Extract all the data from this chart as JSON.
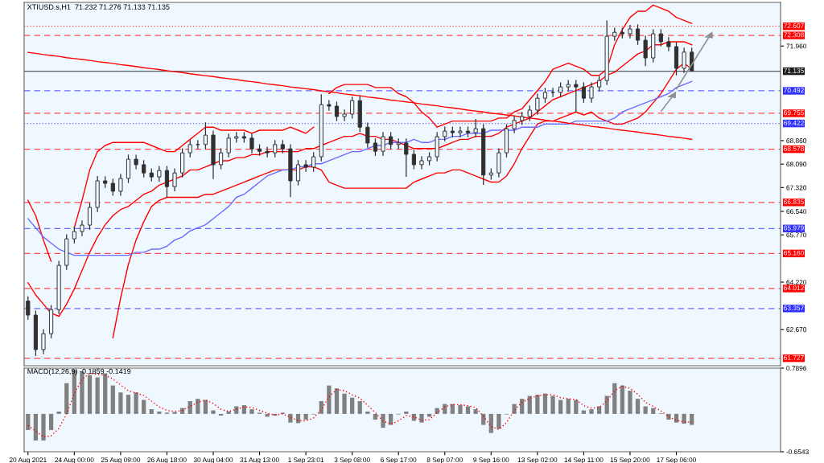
{
  "chart_data": [
    {
      "type": "candlestick",
      "title": "XTIUSD.s,H1  71.232 71.276 71.133 71.135",
      "tick_labels": "y",
      "grid": false,
      "legend": false,
      "categories": [
        null,
        null,
        null,
        null,
        null,
        null,
        null,
        null,
        null,
        null,
        null,
        null,
        null,
        null,
        null,
        null,
        null,
        null,
        null,
        null,
        null,
        null,
        null,
        null,
        null,
        null,
        null,
        null,
        null,
        null,
        null,
        null,
        null,
        null,
        null,
        null,
        null,
        null,
        null,
        null,
        null,
        null,
        null,
        null,
        null,
        null,
        null,
        null,
        null,
        null,
        null,
        null,
        null,
        null,
        null,
        null,
        null,
        null,
        null,
        null,
        null,
        null,
        null,
        null,
        null,
        null,
        null,
        null,
        null,
        null,
        null,
        null,
        null,
        null,
        null,
        null,
        null,
        null,
        null,
        null,
        null,
        null,
        null,
        null,
        null,
        null,
        null
      ],
      "ohlc": [
        [
          63.6,
          63.75,
          62.99,
          63.14
        ],
        [
          63.14,
          63.29,
          61.8,
          62.01
        ],
        [
          62.01,
          62.68,
          61.86,
          62.53
        ],
        [
          62.53,
          63.47,
          62.38,
          63.32
        ],
        [
          63.32,
          64.92,
          63.17,
          64.77
        ],
        [
          64.77,
          65.79,
          64.62,
          65.64
        ],
        [
          65.64,
          66.03,
          65.49,
          65.88
        ],
        [
          65.88,
          66.24,
          65.73,
          66.09
        ],
        [
          66.09,
          66.82,
          65.94,
          66.67
        ],
        [
          66.67,
          67.7,
          66.52,
          67.54
        ],
        [
          67.54,
          67.69,
          67.31,
          67.46
        ],
        [
          67.46,
          67.61,
          67.05,
          67.2
        ],
        [
          67.2,
          67.77,
          67.05,
          67.62
        ],
        [
          67.62,
          68.4,
          67.47,
          68.25
        ],
        [
          68.25,
          68.4,
          67.92,
          68.07
        ],
        [
          68.07,
          68.22,
          67.65,
          67.8
        ],
        [
          67.8,
          67.95,
          67.52,
          67.67
        ],
        [
          67.67,
          68.03,
          67.52,
          67.88
        ],
        [
          67.88,
          68.03,
          67.0,
          67.35
        ],
        [
          67.35,
          67.95,
          67.2,
          67.8
        ],
        [
          67.8,
          68.61,
          67.65,
          68.46
        ],
        [
          68.46,
          68.88,
          68.31,
          68.73
        ],
        [
          68.73,
          68.88,
          68.58,
          68.73
        ],
        [
          68.73,
          69.46,
          68.58,
          69.04
        ],
        [
          69.04,
          69.19,
          67.6,
          68.07
        ],
        [
          68.07,
          68.61,
          67.92,
          68.46
        ],
        [
          68.46,
          69.09,
          68.31,
          68.94
        ],
        [
          68.94,
          69.14,
          68.79,
          68.99
        ],
        [
          68.99,
          69.14,
          68.79,
          68.94
        ],
        [
          68.94,
          69.09,
          68.44,
          68.59
        ],
        [
          68.59,
          68.74,
          68.36,
          68.51
        ],
        [
          68.51,
          68.66,
          68.31,
          68.46
        ],
        [
          68.46,
          68.88,
          68.31,
          68.73
        ],
        [
          68.73,
          68.88,
          68.44,
          68.59
        ],
        [
          68.59,
          68.74,
          67.01,
          67.54
        ],
        [
          67.54,
          68.22,
          67.39,
          68.07
        ],
        [
          68.07,
          68.22,
          67.84,
          67.99
        ],
        [
          67.99,
          68.48,
          67.84,
          68.33
        ],
        [
          68.33,
          70.38,
          68.18,
          70.04
        ],
        [
          70.04,
          70.19,
          69.84,
          69.99
        ],
        [
          69.99,
          70.14,
          69.5,
          69.65
        ],
        [
          69.65,
          69.88,
          69.5,
          69.73
        ],
        [
          69.73,
          70.3,
          69.58,
          70.17
        ],
        [
          70.17,
          70.32,
          69.15,
          69.3
        ],
        [
          69.3,
          69.45,
          68.63,
          68.78
        ],
        [
          68.78,
          68.93,
          68.36,
          68.51
        ],
        [
          68.51,
          69.14,
          68.36,
          68.99
        ],
        [
          68.99,
          69.14,
          68.58,
          68.73
        ],
        [
          68.73,
          68.93,
          68.58,
          68.78
        ],
        [
          68.78,
          68.93,
          67.67,
          68.41
        ],
        [
          68.41,
          68.56,
          67.92,
          68.07
        ],
        [
          68.07,
          68.35,
          67.92,
          68.2
        ],
        [
          68.2,
          68.48,
          68.05,
          68.33
        ],
        [
          68.33,
          69.14,
          68.18,
          68.99
        ],
        [
          68.99,
          69.32,
          68.84,
          69.17
        ],
        [
          69.17,
          69.32,
          68.97,
          69.12
        ],
        [
          69.12,
          69.32,
          68.97,
          69.17
        ],
        [
          69.17,
          69.32,
          68.97,
          69.12
        ],
        [
          69.12,
          69.57,
          68.97,
          69.25
        ],
        [
          69.25,
          69.4,
          67.41,
          67.73
        ],
        [
          67.73,
          67.95,
          67.58,
          67.8
        ],
        [
          67.8,
          68.61,
          67.65,
          68.46
        ],
        [
          68.46,
          69.4,
          68.31,
          69.25
        ],
        [
          69.25,
          69.67,
          69.1,
          69.52
        ],
        [
          69.52,
          69.8,
          69.37,
          69.65
        ],
        [
          69.65,
          70.01,
          69.5,
          69.86
        ],
        [
          69.86,
          70.4,
          69.71,
          70.25
        ],
        [
          70.25,
          70.59,
          70.1,
          70.44
        ],
        [
          70.44,
          70.59,
          70.29,
          70.44
        ],
        [
          70.44,
          70.77,
          70.29,
          70.62
        ],
        [
          70.62,
          70.85,
          70.47,
          70.7
        ],
        [
          70.7,
          70.85,
          69.78,
          70.62
        ],
        [
          70.62,
          70.77,
          70.1,
          70.25
        ],
        [
          70.25,
          70.77,
          70.1,
          70.62
        ],
        [
          70.62,
          70.98,
          70.47,
          70.83
        ],
        [
          70.83,
          72.8,
          70.68,
          72.28
        ],
        [
          72.28,
          72.56,
          72.13,
          72.41
        ],
        [
          72.41,
          72.56,
          72.21,
          72.36
        ],
        [
          72.36,
          72.65,
          72.21,
          72.52
        ],
        [
          72.52,
          72.67,
          72.0,
          72.15
        ],
        [
          72.15,
          72.3,
          71.3,
          71.57
        ],
        [
          71.57,
          72.51,
          71.42,
          72.36
        ],
        [
          72.36,
          72.51,
          71.95,
          72.1
        ],
        [
          72.1,
          72.25,
          71.79,
          71.94
        ],
        [
          71.94,
          72.09,
          71.0,
          71.23
        ],
        [
          71.23,
          71.91,
          71.08,
          71.76
        ],
        [
          71.76,
          71.91,
          71.133,
          71.135
        ]
      ],
      "series": [
        {
          "type": "line",
          "color": "#ff0000",
          "values": [
            66.9,
            66.4,
            65.6,
            64.9,
            null,
            null,
            66.0,
            66.9,
            67.9,
            68.5,
            68.7,
            68.8,
            68.8,
            68.8,
            68.8,
            68.8,
            68.7,
            68.6,
            68.5,
            68.5,
            68.7,
            68.9,
            69.1,
            69.3,
            69.3,
            69.2,
            69.2,
            69.2,
            69.2,
            69.1,
            69.2,
            69.2,
            69.2,
            69.2,
            69.3,
            69.2,
            69.1,
            69.3,
            null,
            70.4,
            70.6,
            70.7,
            70.7,
            70.7,
            70.7,
            70.6,
            70.6,
            70.6,
            70.4,
            70.3,
            70.1,
            69.8,
            69.6,
            69.3,
            69.4,
            69.5,
            69.5,
            69.5,
            69.5,
            69.5,
            69.5,
            69.6,
            69.6,
            69.8,
            69.9,
            70.2,
            70.5,
            70.8,
            71.2,
            71.3,
            71.4,
            71.3,
            71.2,
            71.0,
            71.0,
            71.2,
            72.0,
            72.5,
            72.9,
            73.1,
            73.1,
            73.3,
            73.2,
            73.1,
            72.9,
            72.8,
            72.7
          ]
        },
        {
          "type": "line",
          "color": "#ff0000",
          "values": [
            64.2,
            63.8,
            63.5,
            63.2,
            63.1,
            63.5,
            64.0,
            64.6,
            65.2,
            65.7,
            66.1,
            66.4,
            66.6,
            66.7,
            66.9,
            67.1,
            67.2,
            67.4,
            67.5,
            67.6,
            67.7,
            67.9,
            67.9,
            68.0,
            68.1,
            68.2,
            68.2,
            68.3,
            68.3,
            68.4,
            68.4,
            68.5,
            68.5,
            68.5,
            68.5,
            68.5,
            68.6,
            68.6,
            68.7,
            68.8,
            68.9,
            69.0,
            69.0,
            69.1,
            69.0,
            69.0,
            68.9,
            68.9,
            68.8,
            68.7,
            68.6,
            68.6,
            68.6,
            68.6,
            68.7,
            68.8,
            68.9,
            68.9,
            69.0,
            69.0,
            69.0,
            69.1,
            69.3,
            69.4,
            69.5,
            69.6,
            69.8,
            70.0,
            70.2,
            70.3,
            70.4,
            70.5,
            70.6,
            70.7,
            70.8,
            71.0,
            71.1,
            71.3,
            71.5,
            71.7,
            71.8,
            72.0,
            72.0,
            72.1,
            72.1,
            72.1,
            72.0
          ]
        },
        {
          "type": "line",
          "color": "#ff0000",
          "values": [
            null,
            null,
            null,
            null,
            null,
            null,
            null,
            null,
            null,
            null,
            null,
            62.4,
            63.7,
            64.8,
            65.6,
            66.2,
            66.7,
            66.9,
            67.0,
            67.0,
            67.0,
            67.0,
            67.0,
            67.1,
            67.1,
            67.2,
            67.3,
            67.4,
            67.5,
            67.6,
            67.7,
            67.8,
            67.9,
            67.9,
            67.9,
            67.9,
            68.0,
            68.0,
            67.9,
            67.5,
            67.4,
            67.3,
            67.3,
            67.3,
            67.3,
            67.3,
            67.3,
            67.3,
            67.3,
            67.3,
            67.5,
            67.6,
            67.7,
            67.8,
            67.8,
            67.9,
            67.9,
            67.8,
            67.7,
            67.6,
            67.5,
            67.5,
            67.7,
            68.1,
            68.6,
            69.0,
            69.4,
            69.5,
            69.5,
            69.6,
            69.7,
            69.8,
            69.7,
            69.8,
            69.6,
            69.5,
            69.4,
            69.4,
            69.5,
            69.6,
            69.8,
            70.1,
            70.4,
            70.8,
            71.2,
            71.4,
            71.2
          ]
        },
        {
          "type": "line",
          "color": "#6b6bff",
          "values": [
            66.3,
            66.0,
            65.7,
            65.5,
            65.3,
            65.2,
            65.1,
            65.1,
            65.1,
            65.1,
            65.1,
            65.1,
            65.1,
            65.1,
            65.2,
            65.2,
            65.3,
            65.3,
            65.4,
            65.6,
            65.7,
            65.9,
            66.0,
            66.1,
            66.3,
            66.5,
            66.7,
            67.0,
            67.1,
            67.3,
            67.5,
            67.7,
            67.8,
            67.9,
            67.9,
            68.0,
            68.0,
            68.1,
            68.1,
            68.2,
            68.3,
            68.4,
            68.5,
            68.5,
            68.6,
            68.7,
            68.7,
            68.8,
            68.8,
            68.8,
            68.9,
            68.8,
            68.8,
            68.9,
            68.9,
            69.0,
            69.0,
            69.1,
            69.1,
            69.1,
            69.2,
            69.2,
            69.2,
            69.2,
            69.3,
            69.3,
            69.3,
            69.4,
            69.4,
            69.4,
            69.4,
            69.5,
            69.5,
            69.5,
            69.5,
            69.5,
            69.6,
            69.8,
            69.9,
            70.0,
            70.1,
            70.2,
            70.3,
            70.4,
            70.6,
            70.7,
            70.8
          ]
        },
        {
          "type": "line",
          "color": "#ff0000",
          "values": [
            71.75,
            71.72,
            71.68,
            71.65,
            71.62,
            71.58,
            71.55,
            71.52,
            71.49,
            71.45,
            71.42,
            71.39,
            71.35,
            71.32,
            71.29,
            71.25,
            71.22,
            71.19,
            71.15,
            71.12,
            71.09,
            71.05,
            71.02,
            70.99,
            70.96,
            70.92,
            70.89,
            70.86,
            70.82,
            70.79,
            70.76,
            70.72,
            70.69,
            70.66,
            70.62,
            70.59,
            70.56,
            70.53,
            70.49,
            70.46,
            70.43,
            70.39,
            70.36,
            70.33,
            70.29,
            70.26,
            70.23,
            70.19,
            70.16,
            70.13,
            70.1,
            70.06,
            70.03,
            70.0,
            69.96,
            69.93,
            69.9,
            69.86,
            69.83,
            69.8,
            69.76,
            69.73,
            69.7,
            69.67,
            69.63,
            69.6,
            69.57,
            69.53,
            69.5,
            69.47,
            69.43,
            69.4,
            69.37,
            69.33,
            69.3,
            69.27,
            69.23,
            69.2,
            69.17,
            69.14,
            69.1,
            69.07,
            69.04,
            69.0,
            68.97,
            68.94,
            68.9
          ]
        }
      ],
      "ylim": [
        61.48,
        73.39
      ],
      "yticks": [
        {
          "value": 71.96,
          "label": "71.960"
        },
        {
          "value": 68.86,
          "label": "68.860"
        },
        {
          "value": 68.09,
          "label": "68.090"
        },
        {
          "value": 67.32,
          "label": "67.320"
        },
        {
          "value": 66.54,
          "label": "66.540"
        },
        {
          "value": 65.77,
          "label": "65.770"
        },
        {
          "value": 64.22,
          "label": "64.220"
        },
        {
          "value": 62.67,
          "label": "62.670"
        }
      ],
      "ref_lines": [
        {
          "axis": "y",
          "value": 72.607,
          "label": "72.607",
          "color": "#ff0000",
          "line_style": "dotted"
        },
        {
          "axis": "y",
          "value": 72.308,
          "label": "72.308",
          "color": "#ff0000",
          "line_style": "dashed"
        },
        {
          "axis": "y",
          "value": 71.135,
          "label": "71.135",
          "color": "#1a1a1a",
          "line_style": "solid"
        },
        {
          "axis": "y",
          "value": 70.492,
          "label": "70.492",
          "color": "#3030ff",
          "line_style": "dashed"
        },
        {
          "axis": "y",
          "value": 69.755,
          "label": "69.755",
          "color": "#ff0000",
          "line_style": "dashed"
        },
        {
          "axis": "y",
          "value": 69.422,
          "label": "69.422",
          "color": "#3030ff",
          "line_style": "dotted"
        },
        {
          "axis": "y",
          "value": 68.578,
          "label": "68.578",
          "color": "#ff0000",
          "line_style": "dashed"
        },
        {
          "axis": "y",
          "value": 66.835,
          "label": "66.835",
          "color": "#ff0000",
          "line_style": "dashed"
        },
        {
          "axis": "y",
          "value": 65.979,
          "label": "65.979",
          "color": "#3030ff",
          "line_style": "dashed"
        },
        {
          "axis": "y",
          "value": 65.16,
          "label": "65.160",
          "color": "#ff0000",
          "line_style": "dashed"
        },
        {
          "axis": "y",
          "value": 64.012,
          "label": "64.012",
          "color": "#ff0000",
          "line_style": "dashed"
        },
        {
          "axis": "y",
          "value": 63.357,
          "label": "63.357",
          "color": "#3030ff",
          "line_style": "dashed"
        },
        {
          "axis": "y",
          "value": 61.727,
          "label": "61.727",
          "color": "#ff0000",
          "line_style": "dashed"
        }
      ]
    },
    {
      "type": "bar",
      "title": "MACD(12,26,9) -0.1859 -0.1419",
      "grid": false,
      "legend": false,
      "categories": [
        "20 Aug 2021",
        null,
        null,
        null,
        null,
        null,
        "24 Aug 00:00",
        null,
        null,
        null,
        null,
        null,
        "25 Aug 09:00",
        null,
        null,
        null,
        null,
        null,
        "26 Aug 18:00",
        null,
        null,
        null,
        null,
        null,
        "30 Aug 04:00",
        null,
        null,
        null,
        null,
        null,
        "31 Aug 13:00",
        null,
        null,
        null,
        null,
        null,
        "1 Sep 23:01",
        null,
        null,
        null,
        null,
        null,
        "3 Sep 08:00",
        null,
        null,
        null,
        null,
        null,
        "6 Sep 17:00",
        null,
        null,
        null,
        null,
        null,
        "8 Sep 07:00",
        null,
        null,
        null,
        null,
        null,
        "9 Sep 16:00",
        null,
        null,
        null,
        null,
        null,
        "13 Sep 02:00",
        null,
        null,
        null,
        null,
        null,
        "14 Sep 11:00",
        null,
        null,
        null,
        null,
        null,
        "15 Sep 20:00",
        null,
        null,
        null,
        null,
        null,
        "17 Sep 06:00",
        null,
        null
      ],
      "series": [
        {
          "type": "bar",
          "color": "#808080",
          "values": [
            -0.28,
            -0.46,
            -0.46,
            -0.28,
            0.04,
            0.53,
            0.76,
            0.73,
            0.67,
            0.63,
            0.7,
            0.49,
            0.37,
            0.33,
            0.37,
            0.24,
            0.08,
            0.04,
            0.02,
            0.03,
            0.1,
            0.22,
            0.26,
            0.24,
            0.06,
            -0.03,
            0.04,
            0.13,
            0.15,
            0.08,
            0.02,
            -0.05,
            -0.03,
            0.02,
            -0.15,
            -0.16,
            -0.1,
            -0.01,
            0.22,
            0.49,
            0.44,
            0.35,
            0.28,
            0.22,
            0.04,
            -0.1,
            -0.24,
            -0.19,
            -0.01,
            0.04,
            -0.12,
            -0.15,
            -0.05,
            0.1,
            0.17,
            0.17,
            0.15,
            0.13,
            0.08,
            -0.19,
            -0.33,
            -0.26,
            -0.01,
            0.17,
            0.26,
            0.31,
            0.33,
            0.35,
            0.31,
            0.24,
            0.26,
            0.24,
            0.06,
            0.08,
            0.13,
            0.31,
            0.53,
            0.49,
            0.4,
            0.26,
            0.13,
            0.1,
            0.01,
            -0.1,
            -0.15,
            -0.17,
            -0.19
          ]
        },
        {
          "type": "line",
          "color": "#ff0000",
          "line_style": "dotted",
          "values": [
            -0.2,
            -0.3,
            -0.4,
            -0.38,
            -0.25,
            0.0,
            0.35,
            0.6,
            0.7,
            0.68,
            0.67,
            0.6,
            0.5,
            0.4,
            0.36,
            0.32,
            0.22,
            0.12,
            0.06,
            0.04,
            0.06,
            0.13,
            0.2,
            0.24,
            0.18,
            0.08,
            0.04,
            0.08,
            0.12,
            0.11,
            0.06,
            0.01,
            -0.02,
            0.0,
            -0.06,
            -0.12,
            -0.12,
            -0.07,
            0.07,
            0.3,
            0.42,
            0.4,
            0.33,
            0.27,
            0.15,
            0.02,
            -0.12,
            -0.18,
            -0.12,
            -0.03,
            -0.05,
            -0.11,
            -0.1,
            0.02,
            0.12,
            0.16,
            0.16,
            0.14,
            0.11,
            -0.04,
            -0.22,
            -0.27,
            -0.15,
            0.06,
            0.2,
            0.27,
            0.31,
            0.33,
            0.33,
            0.28,
            0.26,
            0.25,
            0.14,
            0.1,
            0.11,
            0.22,
            0.4,
            0.48,
            0.44,
            0.34,
            0.2,
            0.13,
            0.05,
            -0.05,
            -0.11,
            -0.14,
            -0.14
          ]
        }
      ],
      "ylim": [
        -0.6543,
        0.7896
      ],
      "yticks": [
        {
          "value": 0.7896,
          "label": "0.7896"
        },
        {
          "value": -0.6543,
          "label": "-0.6543"
        }
      ]
    }
  ]
}
